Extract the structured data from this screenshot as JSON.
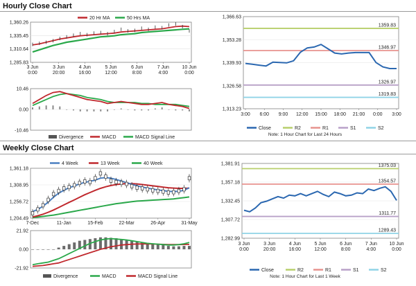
{
  "sections": {
    "hourly_title": "Hourly Close Chart",
    "weekly_title": "Weekly Close Chart"
  },
  "colors": {
    "ma_short": "#c0282d",
    "ma_long": "#2aa84a",
    "close": "#2a67b0",
    "r2": "#b7cf6a",
    "r1": "#e7928e",
    "s1": "#b8a0c8",
    "s2": "#8fd3e6",
    "candle": "#333333",
    "hist": "#555555",
    "w4": "#4a7fc1"
  },
  "chart_data": [
    {
      "id": "hourly_price",
      "type": "line",
      "legend": [
        "20 Hr MA",
        "50 Hrs MA"
      ],
      "y_ticks": [
        "1,360.26",
        "1,335.45",
        "1,310.64",
        "1,285.83"
      ],
      "ylim": [
        1285.83,
        1360.26
      ],
      "x_ticks": [
        [
          "3 Jun",
          "0:00"
        ],
        [
          "3 Jun",
          "20:00"
        ],
        [
          "4 Jun",
          "16:00"
        ],
        [
          "5 Jun",
          "12:00"
        ],
        [
          "6 Jun",
          "8:00"
        ],
        [
          "7 Jun",
          "4:00"
        ],
        [
          "10 Jun",
          "0:00"
        ]
      ],
      "series": [
        {
          "name": "Close",
          "values": [
            1319,
            1321,
            1323,
            1326,
            1330,
            1333,
            1336,
            1339,
            1337,
            1340,
            1341,
            1339,
            1343,
            1347,
            1344,
            1345,
            1349,
            1347,
            1351,
            1350,
            1355,
            1357,
            1352,
            1344
          ]
        },
        {
          "name": "20 Hr MA",
          "values": [
            1318,
            1320,
            1323,
            1326,
            1329,
            1331,
            1333,
            1335,
            1336,
            1337,
            1338,
            1339,
            1340,
            1342,
            1343,
            1344,
            1345,
            1346,
            1347,
            1348,
            1350,
            1352,
            1353,
            1352
          ]
        },
        {
          "name": "50 Hrs MA",
          "values": [
            1305,
            1309,
            1313,
            1317,
            1320,
            1323,
            1325,
            1327,
            1329,
            1331,
            1333,
            1334,
            1335,
            1337,
            1338,
            1339,
            1341,
            1342,
            1343,
            1344,
            1345,
            1346,
            1347,
            1348
          ]
        }
      ]
    },
    {
      "id": "hourly_macd",
      "type": "line",
      "y_ticks": [
        "10.46",
        "0.00",
        "-10.46"
      ],
      "ylim": [
        -10.46,
        10.46
      ],
      "legend": [
        "Divergence",
        "MACD",
        "MACD Signal Line"
      ],
      "series": [
        {
          "name": "MACD",
          "values": [
            3,
            5,
            7,
            8.5,
            9,
            8,
            7,
            6,
            5,
            4.5,
            4,
            3,
            3.5,
            4,
            3.5,
            3,
            2.5,
            2.5,
            3,
            3.5,
            2.5,
            2,
            1.5,
            0.5
          ]
        },
        {
          "name": "MACD Signal Line",
          "values": [
            2,
            3.5,
            5,
            6.5,
            7.5,
            8,
            7.5,
            7,
            6,
            5.5,
            5,
            4,
            3.5,
            3.5,
            3.5,
            3.5,
            3,
            3,
            2.5,
            2.5,
            2.5,
            2.5,
            2,
            1.5
          ]
        },
        {
          "name": "Divergence",
          "values": [
            1,
            1.5,
            2,
            2,
            1.5,
            0,
            -0.5,
            -1,
            -1,
            -1,
            -1,
            -1,
            0,
            0.5,
            0,
            -0.5,
            -0.5,
            -0.5,
            0.5,
            1,
            0,
            -0.5,
            -0.5,
            -1
          ]
        }
      ]
    },
    {
      "id": "hourly_pivot",
      "type": "line",
      "y_ticks": [
        "1,366.63",
        "1,353.28",
        "1,339.93",
        "1,326.58",
        "1,313.23"
      ],
      "ylim": [
        1313.23,
        1366.63
      ],
      "x_ticks": [
        "3:00",
        "6:00",
        "9:00",
        "12:00",
        "15:00",
        "18:00",
        "21:00",
        "0:00",
        "3:00"
      ],
      "levels": [
        {
          "name": "R2",
          "value": 1359.83,
          "label": "1359.83"
        },
        {
          "name": "R1",
          "value": 1346.97,
          "label": "1346.97"
        },
        {
          "name": "S1",
          "value": 1326.97,
          "label": "1326.97"
        },
        {
          "name": "S2",
          "value": 1319.83,
          "label": "1319.83"
        }
      ],
      "close": [
        1339.5,
        1339.0,
        1338.5,
        1338.0,
        1340.2,
        1340.0,
        1339.8,
        1341.0,
        1346.0,
        1348.5,
        1349.0,
        1350.5,
        1348.0,
        1345.5,
        1345.0,
        1345.5,
        1345.8,
        1345.8,
        1345.8,
        1340.0,
        1337.5,
        1336.5,
        1336.5
      ],
      "legend": [
        "Close",
        "R2",
        "R1",
        "S1",
        "S2"
      ],
      "note": "Note: 1 Hour Chart for Last 24 Hours"
    },
    {
      "id": "weekly_price",
      "type": "line",
      "legend": [
        "4 Week",
        "13 Week",
        "40 Week"
      ],
      "y_ticks": [
        "1,361.18",
        "1,308.95",
        "1,256.72",
        "1,204.49"
      ],
      "ylim": [
        1204.49,
        1361.18
      ],
      "x_ticks": [
        "7-Dec",
        "11-Jan",
        "15-Feb",
        "22-Mar",
        "26-Apr",
        "31-May"
      ],
      "candles": [
        1220,
        1232,
        1245,
        1262,
        1280,
        1290,
        1298,
        1302,
        1308,
        1315,
        1320,
        1318,
        1330,
        1345,
        1335,
        1322,
        1318,
        1315,
        1312,
        1305,
        1300,
        1298,
        1295,
        1292,
        1290,
        1288,
        1285,
        1286,
        1290,
        1295,
        1330
      ],
      "series": [
        {
          "name": "4 Week",
          "values": [
            1225,
            1232,
            1242,
            1255,
            1270,
            1283,
            1292,
            1300,
            1306,
            1312,
            1317,
            1320,
            1324,
            1330,
            1332,
            1330,
            1326,
            1321,
            1316,
            1311,
            1306,
            1302,
            1299,
            1296,
            1293,
            1291,
            1289,
            1288,
            1289,
            1292,
            1300
          ]
        },
        {
          "name": "13 Week",
          "values": [
            1208,
            1212,
            1217,
            1223,
            1230,
            1238,
            1246,
            1254,
            1262,
            1270,
            1278,
            1285,
            1292,
            1298,
            1303,
            1307,
            1310,
            1312,
            1313,
            1313,
            1312,
            1310,
            1308,
            1306,
            1304,
            1302,
            1300,
            1299,
            1298,
            1298,
            1299
          ]
        },
        {
          "name": "40 Week",
          "values": [
            1206,
            1208,
            1210,
            1212,
            1214,
            1217,
            1220,
            1223,
            1226,
            1229,
            1232,
            1235,
            1238,
            1241,
            1244,
            1247,
            1250,
            1252,
            1254,
            1256,
            1258,
            1259,
            1260,
            1261,
            1262,
            1263,
            1264,
            1265,
            1267,
            1269,
            1271
          ]
        }
      ]
    },
    {
      "id": "weekly_macd",
      "type": "line",
      "y_ticks": [
        "21.92",
        "0.00",
        "-21.92"
      ],
      "ylim": [
        -21.92,
        21.92
      ],
      "legend": [
        "Divergence",
        "MACD",
        "MACD Signal Line"
      ],
      "hist": [
        0,
        0,
        0,
        0,
        0,
        2,
        4,
        6,
        8,
        10,
        11,
        12,
        13,
        14,
        14,
        13.5,
        13,
        12,
        11,
        10,
        9,
        8,
        7.5,
        7,
        6,
        5,
        4,
        3.5,
        3.5,
        4,
        4
      ],
      "series": [
        {
          "name": "MACD",
          "values": [
            -18,
            -17,
            -16,
            -15,
            -13,
            -11,
            -8,
            -5,
            -2,
            1,
            4,
            7,
            9,
            11,
            12,
            12.5,
            12,
            11.5,
            11,
            10,
            9,
            8,
            7,
            6.5,
            6,
            5.5,
            5,
            5,
            5.5,
            6.5,
            8
          ]
        },
        {
          "name": "MACD Signal Line",
          "values": [
            -20,
            -19.5,
            -19,
            -18,
            -17,
            -16,
            -14,
            -12,
            -10,
            -8,
            -6,
            -4,
            -2,
            0,
            1.5,
            3,
            4,
            5,
            5.5,
            6,
            6.2,
            6.3,
            6.3,
            6.2,
            6,
            5.8,
            5.6,
            5.5,
            5.5,
            5.6,
            5.8
          ]
        }
      ]
    },
    {
      "id": "weekly_pivot",
      "type": "line",
      "y_ticks": [
        "1,381.91",
        "1,357.18",
        "1,332.45",
        "1,307.72",
        "1,282.99"
      ],
      "ylim": [
        1282.99,
        1381.91
      ],
      "x_ticks": [
        [
          "3 Jun",
          "0:00"
        ],
        [
          "3 Jun",
          "20:00"
        ],
        [
          "4 Jun",
          "16:00"
        ],
        [
          "5 Jun",
          "12:00"
        ],
        [
          "6 Jun",
          "8:00"
        ],
        [
          "7 Jun",
          "4:00"
        ],
        [
          "10 Jun",
          "0:00"
        ]
      ],
      "levels": [
        {
          "name": "R2",
          "value": 1375.03,
          "label": "1375.03"
        },
        {
          "name": "R1",
          "value": 1354.57,
          "label": "1354.57"
        },
        {
          "name": "S1",
          "value": 1311.77,
          "label": "1311.77"
        },
        {
          "name": "S2",
          "value": 1289.43,
          "label": "1289.43"
        }
      ],
      "close": [
        1320,
        1318,
        1323,
        1330,
        1332,
        1335,
        1338,
        1336,
        1340,
        1339,
        1342,
        1339,
        1342,
        1345,
        1341,
        1338,
        1344,
        1342,
        1339,
        1340,
        1343,
        1342,
        1348,
        1346,
        1349,
        1351,
        1345,
        1333
      ],
      "legend": [
        "Close",
        "R2",
        "R1",
        "S1",
        "S2"
      ],
      "note": "Note: 1 Hour Chart for Last 1 Week"
    }
  ]
}
